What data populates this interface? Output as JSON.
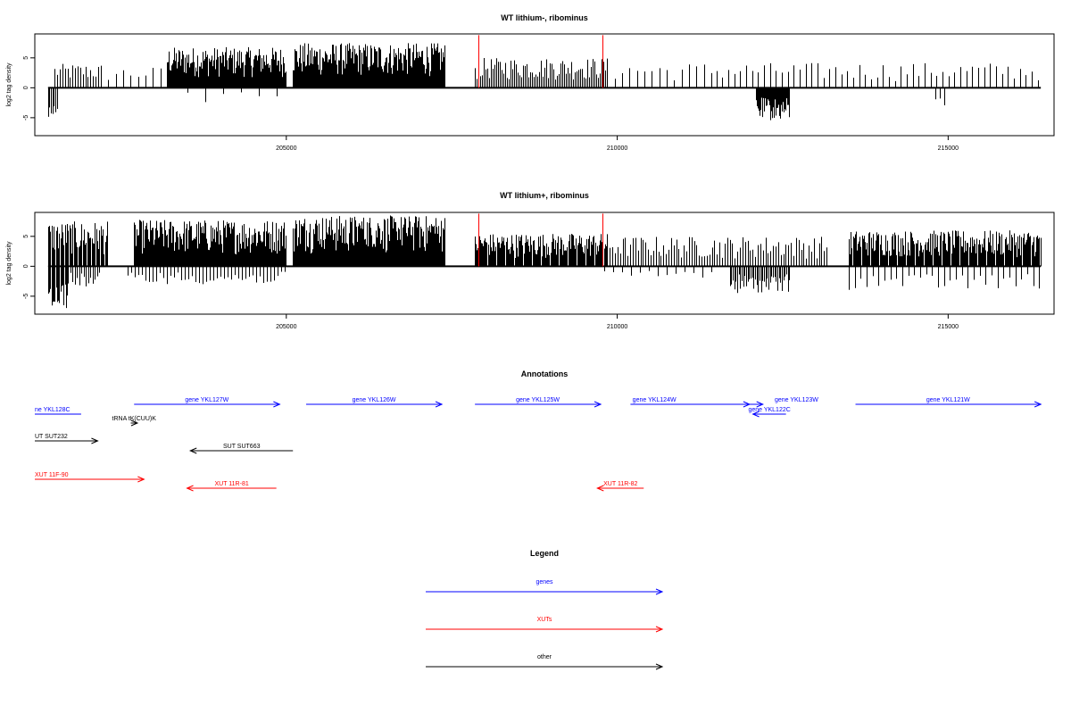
{
  "panels": [
    {
      "title": "WT lithium-, ribominus",
      "ylabel": "log2 tag density",
      "ylim": [
        -8,
        9
      ],
      "xlim": [
        201200,
        216600
      ],
      "x_ticks": [
        205000,
        210000,
        215000
      ],
      "y_ticks": [
        -5,
        0,
        5
      ],
      "track_start": 201400,
      "track_end": 216400,
      "pos_segments": [
        {
          "start": 201500,
          "end": 202200,
          "max": 4.0,
          "density": 0.35,
          "stroke": 1
        },
        {
          "start": 202200,
          "end": 203200,
          "max": 3.5,
          "density": 0.12,
          "stroke": 1
        },
        {
          "start": 203200,
          "end": 205000,
          "max": 6.8,
          "density": 1.0,
          "stroke": 1
        },
        {
          "start": 205100,
          "end": 207400,
          "max": 7.5,
          "density": 1.0,
          "stroke": 1
        },
        {
          "start": 207850,
          "end": 209850,
          "max": 5.0,
          "density": 0.5,
          "stroke": 1
        },
        {
          "start": 209850,
          "end": 211500,
          "max": 4.2,
          "density": 0.12,
          "stroke": 1
        },
        {
          "start": 211500,
          "end": 216400,
          "max": 4.2,
          "density": 0.15,
          "stroke": 1
        }
      ],
      "neg_segments": [
        {
          "start": 201400,
          "end": 201550,
          "min": -5.0,
          "density": 0.6
        },
        {
          "start": 203500,
          "end": 205000,
          "min": -2.5,
          "density": 0.05
        },
        {
          "start": 212100,
          "end": 212600,
          "min": -5.5,
          "density": 1.0
        },
        {
          "start": 214800,
          "end": 215000,
          "min": -4.2,
          "density": 0.2
        }
      ],
      "red_marks": [
        207900,
        209780
      ],
      "red_mark_height": 8.8
    },
    {
      "title": "WT lithium+, ribominus",
      "ylabel": "log2 tag density",
      "ylim": [
        -8,
        9
      ],
      "xlim": [
        201200,
        216600
      ],
      "x_ticks": [
        205000,
        210000,
        215000
      ],
      "y_ticks": [
        -5,
        0,
        5
      ],
      "track_start": 201400,
      "track_end": 216400,
      "pos_segments": [
        {
          "start": 201400,
          "end": 202300,
          "max": 7.5,
          "density": 0.8,
          "stroke": 1
        },
        {
          "start": 202700,
          "end": 205000,
          "max": 7.8,
          "density": 1.0,
          "stroke": 1
        },
        {
          "start": 205100,
          "end": 207400,
          "max": 8.5,
          "density": 1.3,
          "stroke": 1
        },
        {
          "start": 207850,
          "end": 209850,
          "max": 5.5,
          "density": 0.9,
          "stroke": 1
        },
        {
          "start": 209850,
          "end": 213200,
          "max": 5.0,
          "density": 0.35,
          "stroke": 1
        },
        {
          "start": 213500,
          "end": 216400,
          "max": 6.0,
          "density": 0.9,
          "stroke": 1
        }
      ],
      "neg_segments": [
        {
          "start": 201400,
          "end": 201700,
          "min": -7.0,
          "density": 0.8
        },
        {
          "start": 201700,
          "end": 202200,
          "min": -3.5,
          "density": 0.4
        },
        {
          "start": 202600,
          "end": 205000,
          "min": -3.0,
          "density": 0.25
        },
        {
          "start": 209800,
          "end": 211500,
          "min": -2.0,
          "density": 0.1
        },
        {
          "start": 211700,
          "end": 212600,
          "min": -4.5,
          "density": 0.6
        },
        {
          "start": 213500,
          "end": 216400,
          "min": -4.0,
          "density": 0.15
        }
      ],
      "red_marks": [
        207900,
        209780
      ],
      "red_mark_height": 8.8
    }
  ],
  "annotations": {
    "title": "Annotations",
    "features": [
      {
        "label": "ne YKL128C",
        "kind": "gene",
        "dir": "none",
        "start": 201200,
        "end": 201900,
        "row": 1
      },
      {
        "label": "gene YKL127W",
        "kind": "gene",
        "dir": "right",
        "start": 202700,
        "end": 204900,
        "row": 0
      },
      {
        "label": "gene YKL126W",
        "kind": "gene",
        "dir": "right",
        "start": 205300,
        "end": 207350,
        "row": 0
      },
      {
        "label": "gene YKL125W",
        "kind": "gene",
        "dir": "right",
        "start": 207850,
        "end": 209750,
        "row": 0
      },
      {
        "label": "gene YKL124W",
        "kind": "gene",
        "dir": "right",
        "start": 210200,
        "end": 212000,
        "row": 0,
        "label_shift": -0.2
      },
      {
        "label": "gene YKL123W",
        "kind": "gene",
        "dir": "right",
        "start": 211600,
        "end": 212200,
        "row": 0,
        "label_shift": 0.3
      },
      {
        "label": "gene YKL122C",
        "kind": "gene",
        "dir": "left",
        "start": 212050,
        "end": 212550,
        "row": 1
      },
      {
        "label": "gene YKL121W",
        "kind": "gene",
        "dir": "right",
        "start": 213600,
        "end": 216400,
        "row": 0
      },
      {
        "label": "tRNA tK(CUU)K",
        "kind": "other",
        "dir": "right",
        "start": 202650,
        "end": 202750,
        "row": 2
      },
      {
        "label": "UT SUT232",
        "kind": "other",
        "dir": "right",
        "start": 201200,
        "end": 202150,
        "row": 3
      },
      {
        "label": "SUT SUT663",
        "kind": "other",
        "dir": "left",
        "start": 203550,
        "end": 205100,
        "row": 4
      },
      {
        "label": "XUT 11F-90",
        "kind": "xut",
        "dir": "right",
        "start": 201200,
        "end": 202850,
        "row": 5
      },
      {
        "label": "XUT 11R-81",
        "kind": "xut",
        "dir": "left",
        "start": 203500,
        "end": 204850,
        "row": 6
      },
      {
        "label": "XUT 11R-82",
        "kind": "xut",
        "dir": "left",
        "start": 209700,
        "end": 210400,
        "row": 6
      }
    ]
  },
  "legend": {
    "title": "Legend",
    "entries": [
      {
        "label": "genes",
        "kind": "gene"
      },
      {
        "label": "XUTs",
        "kind": "xut"
      },
      {
        "label": "other",
        "kind": "other"
      }
    ]
  },
  "colors": {
    "gene": "#0000ff",
    "xut": "#ff0000",
    "other": "#000000",
    "signal": "#000000",
    "mark": "#ff0000"
  }
}
